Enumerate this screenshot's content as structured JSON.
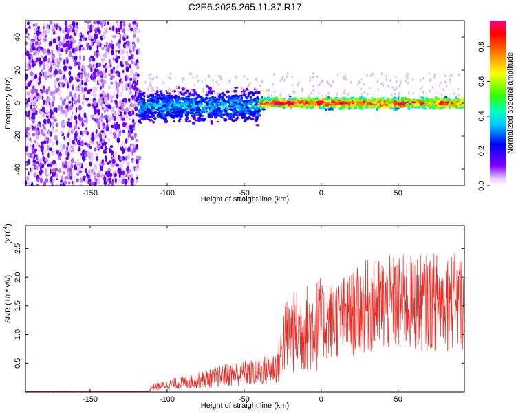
{
  "title": "C2E6.2025.265.11.37.R17",
  "chart_data": [
    {
      "type": "heatmap",
      "title": "C2E6.2025.265.11.37.R17",
      "xlabel": "Height of straight line (km)",
      "ylabel": "Frequency (Hz)",
      "xlim": [
        -192,
        93
      ],
      "ylim": [
        -50,
        50
      ],
      "x_ticks": [
        "-150",
        "-100",
        "-50",
        "0",
        "50"
      ],
      "x_tick_values": [
        -150,
        -100,
        -50,
        0,
        50
      ],
      "y_ticks": [
        "-40",
        "-20",
        "0",
        "20",
        "40"
      ],
      "y_tick_values": [
        -40,
        -20,
        0,
        20,
        40
      ],
      "colorbar": {
        "label": "Normalized spectral amplitude",
        "range": [
          0,
          0.95
        ],
        "ticks": [
          "0.0",
          "0.2",
          "0.4",
          "0.6",
          "0.8"
        ],
        "tick_values": [
          0.0,
          0.2,
          0.4,
          0.6,
          0.8
        ]
      },
      "regions": [
        {
          "x_range": [
            -192,
            -118
          ],
          "freq_range": [
            -50,
            50
          ],
          "amplitude": 0.1
        },
        {
          "x_range": [
            -118,
            -40
          ],
          "center_freq": -2,
          "halfwidth": 6,
          "amplitude": 0.3
        },
        {
          "x_range": [
            -40,
            93
          ],
          "center_freq": 0,
          "halfwidth": 3,
          "amplitude": 0.75
        }
      ],
      "grid": false
    },
    {
      "type": "line",
      "xlabel": "Height of straight line (km)",
      "ylabel": "SNR (10 * v/v)",
      "yscale_label": "(x10",
      "yscale_exponent": "4",
      "xlim": [
        -192,
        93
      ],
      "ylim": [
        0,
        2.9
      ],
      "x_ticks": [
        "-150",
        "-100",
        "-50",
        "0",
        "50"
      ],
      "x_tick_values": [
        -150,
        -100,
        -50,
        0,
        50
      ],
      "y_ticks": [
        "0.5",
        "1.0",
        "1.5",
        "2.0",
        "2.5"
      ],
      "y_tick_values": [
        0.5,
        1.0,
        1.5,
        2.0,
        2.5
      ],
      "series_color": "#e8302a",
      "trend": {
        "x": [
          -192,
          -112,
          -110,
          -100,
          -80,
          -60,
          -40,
          -28,
          -25,
          -22,
          0,
          20,
          30,
          50,
          70,
          80,
          93
        ],
        "y": [
          0.01,
          0.01,
          0.08,
          0.12,
          0.2,
          0.3,
          0.35,
          0.45,
          0.85,
          1.0,
          1.2,
          1.35,
          1.5,
          1.55,
          1.55,
          1.6,
          1.55
        ]
      },
      "grid": false
    }
  ]
}
